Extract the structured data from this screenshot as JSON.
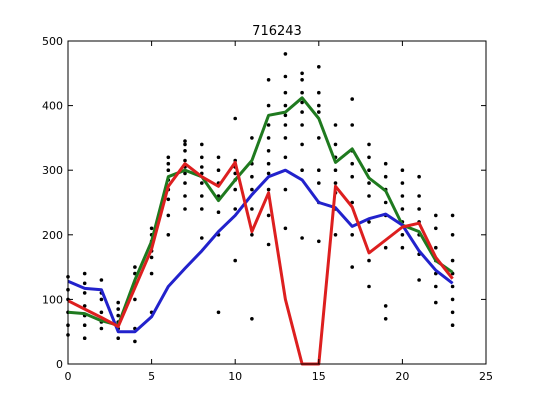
{
  "chart_data": {
    "type": "line",
    "title": "716243",
    "xlabel": "",
    "ylabel": "",
    "xlim": [
      0,
      25
    ],
    "ylim": [
      0,
      500
    ],
    "xticks": [
      0,
      5,
      10,
      15,
      20,
      25
    ],
    "yticks": [
      0,
      100,
      200,
      300,
      400,
      500
    ],
    "grid": false,
    "legend": "none",
    "x": [
      0,
      1,
      2,
      3,
      4,
      5,
      6,
      7,
      8,
      9,
      10,
      11,
      12,
      13,
      14,
      15,
      16,
      17,
      18,
      19,
      20,
      21,
      22,
      23
    ],
    "series": [
      {
        "color": "#1f7a1f",
        "values": [
          80,
          78,
          67,
          60,
          130,
          190,
          290,
          300,
          290,
          253,
          285,
          315,
          385,
          390,
          412,
          380,
          312,
          333,
          288,
          268,
          215,
          205,
          160,
          142
        ]
      },
      {
        "color": "#2222cc",
        "values": [
          128,
          117,
          115,
          50,
          50,
          73,
          120,
          148,
          175,
          205,
          230,
          262,
          290,
          300,
          285,
          250,
          242,
          213,
          225,
          232,
          215,
          175,
          145,
          125
        ]
      },
      {
        "color": "#dd1f1f",
        "values": [
          98,
          85,
          72,
          58,
          118,
          178,
          275,
          310,
          290,
          275,
          312,
          205,
          265,
          100,
          0,
          0,
          275,
          243,
          172,
          192,
          212,
          218,
          165,
          132
        ]
      }
    ],
    "scatter": {
      "color": "#000000",
      "x": [
        0,
        0,
        0,
        0,
        0,
        0,
        1,
        1,
        1,
        1,
        1,
        1,
        1,
        2,
        2,
        2,
        2,
        2,
        2,
        3,
        3,
        3,
        3,
        3,
        3,
        4,
        4,
        4,
        4,
        4,
        4,
        5,
        5,
        5,
        5,
        5,
        5,
        5,
        6,
        6,
        6,
        6,
        6,
        6,
        6,
        6,
        7,
        7,
        7,
        7,
        7,
        7,
        7,
        7,
        7,
        8,
        8,
        8,
        8,
        8,
        8,
        8,
        8,
        9,
        9,
        9,
        9,
        9,
        9,
        9,
        10,
        10,
        10,
        10,
        10,
        10,
        10,
        10,
        11,
        11,
        11,
        11,
        11,
        11,
        11,
        12,
        12,
        12,
        12,
        12,
        12,
        12,
        12,
        12,
        12,
        13,
        13,
        13,
        13,
        13,
        13,
        13,
        13,
        13,
        13,
        14,
        14,
        14,
        14,
        14,
        14,
        14,
        14,
        14,
        15,
        15,
        15,
        15,
        15,
        15,
        15,
        15,
        15,
        16,
        16,
        16,
        16,
        16,
        16,
        16,
        16,
        17,
        17,
        17,
        17,
        17,
        17,
        17,
        17,
        18,
        18,
        18,
        18,
        18,
        18,
        18,
        18,
        19,
        19,
        19,
        19,
        19,
        19,
        19,
        19,
        20,
        20,
        20,
        20,
        20,
        20,
        20,
        21,
        21,
        21,
        21,
        21,
        21,
        21,
        22,
        22,
        22,
        22,
        22,
        22,
        22,
        23,
        23,
        23,
        23,
        23,
        23,
        23,
        23
      ],
      "y": [
        45,
        60,
        80,
        100,
        115,
        135,
        40,
        60,
        75,
        90,
        110,
        125,
        140,
        55,
        65,
        80,
        100,
        110,
        130,
        40,
        55,
        65,
        75,
        85,
        95,
        35,
        55,
        100,
        125,
        140,
        150,
        80,
        140,
        165,
        175,
        190,
        200,
        210,
        200,
        230,
        255,
        270,
        285,
        300,
        310,
        320,
        240,
        260,
        280,
        295,
        305,
        315,
        330,
        340,
        345,
        195,
        240,
        260,
        280,
        295,
        305,
        320,
        340,
        80,
        200,
        235,
        260,
        280,
        300,
        320,
        160,
        240,
        270,
        285,
        295,
        305,
        315,
        380,
        70,
        200,
        240,
        270,
        290,
        310,
        350,
        185,
        230,
        270,
        295,
        310,
        330,
        350,
        370,
        400,
        440,
        210,
        270,
        320,
        350,
        370,
        385,
        400,
        420,
        445,
        480,
        195,
        300,
        340,
        370,
        390,
        405,
        420,
        440,
        450,
        190,
        250,
        280,
        300,
        350,
        390,
        400,
        420,
        460,
        200,
        240,
        265,
        280,
        300,
        320,
        340,
        370,
        150,
        200,
        250,
        290,
        310,
        330,
        370,
        410,
        120,
        160,
        220,
        260,
        280,
        300,
        320,
        340,
        70,
        90,
        180,
        230,
        250,
        270,
        290,
        310,
        180,
        200,
        220,
        240,
        260,
        280,
        300,
        130,
        170,
        200,
        220,
        240,
        260,
        290,
        95,
        120,
        140,
        160,
        180,
        210,
        230,
        60,
        80,
        100,
        120,
        140,
        160,
        200,
        230
      ]
    }
  }
}
